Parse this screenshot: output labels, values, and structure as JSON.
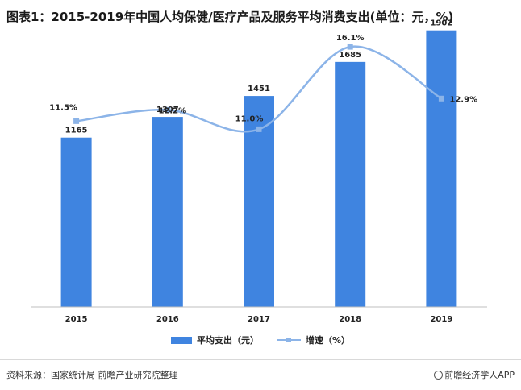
{
  "title": "图表1：2015-2019年中国人均保健/医疗产品及服务平均消费支出(单位：元，%)",
  "colors": {
    "bar": "#3f84e0",
    "line": "#8cb4e8",
    "axis": "#bfbfbf"
  },
  "chart_data": {
    "type": "bar",
    "categories": [
      "2015",
      "2016",
      "2017",
      "2018",
      "2019"
    ],
    "series": [
      {
        "name": "平均支出（元）",
        "type": "bar",
        "axis": "left",
        "values": [
          1165,
          1307,
          1451,
          1685,
          1902
        ]
      },
      {
        "name": "增速（%）",
        "type": "line",
        "axis": "right",
        "values": [
          11.5,
          12.2,
          11.0,
          16.1,
          12.9
        ]
      }
    ],
    "value_labels": [
      "1165",
      "1307",
      "1451",
      "1685",
      "1902"
    ],
    "rate_labels": [
      "11.5%",
      "12.2%",
      "11.0%",
      "16.1%",
      "12.9%"
    ],
    "ylim": [
      0,
      2000
    ],
    "y2lim": [
      0,
      18
    ],
    "grid": false,
    "legend_position": "bottom"
  },
  "footer": {
    "source": "资料来源：国家统计局 前瞻产业研究院整理",
    "brand_icon": "brand-logo-icon",
    "brand": "前瞻经济学人APP"
  }
}
